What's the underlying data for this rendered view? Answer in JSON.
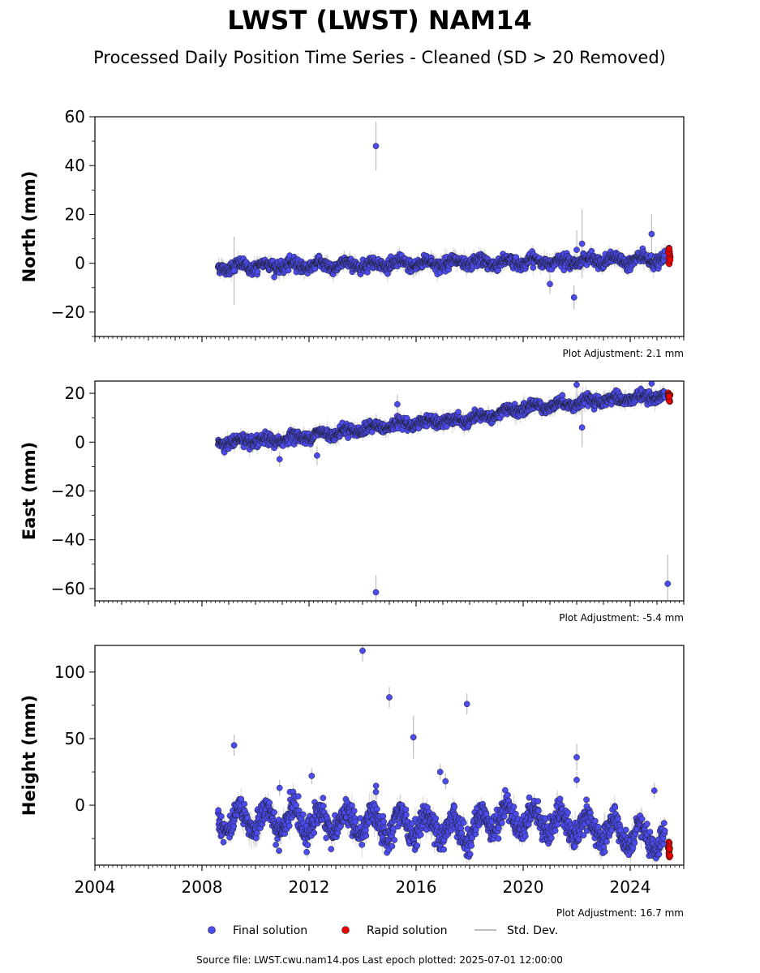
{
  "header": {
    "title": "LWST (LWST) NAM14",
    "subtitle": "Processed Daily Position Time Series - Cleaned (SD > 20 Removed)"
  },
  "legend": {
    "final": "Final solution",
    "rapid": "Rapid solution",
    "std": "Std. Dev."
  },
  "footer": {
    "source": "Source file: LWST.cwu.nam14.pos  Last epoch plotted: 2025-07-01 12:00:00"
  },
  "colors": {
    "final": "#4b4bef",
    "rapid": "#e60000",
    "std": "#bdbdbd"
  },
  "chart_data": [
    {
      "type": "scatter",
      "name": "north",
      "ylabel": "North (mm)",
      "xlim": [
        2004,
        2026
      ],
      "ylim": [
        -30,
        60
      ],
      "yticks": [
        -20,
        0,
        20,
        40,
        60
      ],
      "xticks": [
        2004,
        2008,
        2012,
        2016,
        2020,
        2024
      ],
      "show_xticklabels": false,
      "adjustment": "Plot Adjustment: 2.1 mm",
      "series_params": {
        "start": 2008.6,
        "end": 2025.3,
        "trend": [
          [
            2008.6,
            -1.5
          ],
          [
            2025.3,
            1.5
          ]
        ],
        "seasonal": 1.2,
        "noise": 1.2,
        "sd": 2.5
      },
      "outliers": [
        [
          2014.5,
          48,
          10
        ],
        [
          2021.9,
          -14,
          5
        ],
        [
          2022.0,
          5.5,
          8
        ],
        [
          2022.2,
          8,
          14
        ],
        [
          2021.0,
          -8.5,
          4
        ],
        [
          2024.8,
          12,
          8
        ],
        [
          2009.2,
          -3,
          14
        ]
      ],
      "rapid": {
        "start": 2025.42,
        "end": 2025.5,
        "center": 3,
        "spread": 3.5
      }
    },
    {
      "type": "scatter",
      "name": "east",
      "ylabel": "East (mm)",
      "xlim": [
        2004,
        2026
      ],
      "ylim": [
        -65,
        25
      ],
      "yticks": [
        -60,
        -40,
        -20,
        0,
        20
      ],
      "xticks": [
        2004,
        2008,
        2012,
        2016,
        2020,
        2024
      ],
      "show_xticklabels": false,
      "adjustment": "Plot Adjustment: -5.4 mm",
      "series_params": {
        "start": 2008.6,
        "end": 2025.3,
        "trend": [
          [
            2008.6,
            0
          ],
          [
            2010.5,
            0.5
          ],
          [
            2016,
            8
          ],
          [
            2018,
            9
          ],
          [
            2020,
            14
          ],
          [
            2024,
            18
          ],
          [
            2025.3,
            19
          ]
        ],
        "seasonal": 1.0,
        "noise": 1.1,
        "sd": 2.5
      },
      "outliers": [
        [
          2014.5,
          -61.5,
          7
        ],
        [
          2025.4,
          -58,
          12
        ],
        [
          2015.3,
          15.5,
          4
        ],
        [
          2022.2,
          6,
          8
        ],
        [
          2022.0,
          23.5,
          4
        ],
        [
          2012.3,
          -5.5,
          4
        ],
        [
          2010.9,
          -7,
          3
        ],
        [
          2024.8,
          24,
          6
        ]
      ],
      "rapid": {
        "start": 2025.42,
        "end": 2025.5,
        "center": 18.5,
        "spread": 2.5
      }
    },
    {
      "type": "scatter",
      "name": "height",
      "ylabel": "Height (mm)",
      "xlim": [
        2004,
        2026
      ],
      "ylim": [
        -45,
        120
      ],
      "yticks": [
        0,
        50,
        100
      ],
      "xticks": [
        2004,
        2008,
        2012,
        2016,
        2020,
        2024
      ],
      "show_xticklabels": true,
      "adjustment": "Plot Adjustment: 16.7 mm",
      "series_params": {
        "start": 2008.6,
        "end": 2025.3,
        "trend": [
          [
            2008.6,
            -10
          ],
          [
            2016,
            -15
          ],
          [
            2018,
            -20
          ],
          [
            2019,
            -8
          ],
          [
            2022,
            -15
          ],
          [
            2025.3,
            -28
          ]
        ],
        "seasonal": 9,
        "noise": 5,
        "sd": 7
      },
      "outliers": [
        [
          2014.0,
          116,
          8
        ],
        [
          2015.0,
          81,
          8
        ],
        [
          2015.9,
          51,
          16
        ],
        [
          2017.9,
          76,
          8
        ],
        [
          2009.2,
          45,
          8
        ],
        [
          2012.1,
          22,
          6
        ],
        [
          2016.9,
          25,
          6
        ],
        [
          2017.1,
          18,
          6
        ],
        [
          2022.0,
          36,
          10
        ],
        [
          2022.0,
          19,
          6
        ],
        [
          2024.9,
          11,
          6
        ],
        [
          2014.5,
          10,
          6
        ],
        [
          2010.9,
          13,
          6
        ]
      ],
      "rapid": {
        "start": 2025.42,
        "end": 2025.5,
        "center": -33,
        "spread": 6
      }
    }
  ]
}
